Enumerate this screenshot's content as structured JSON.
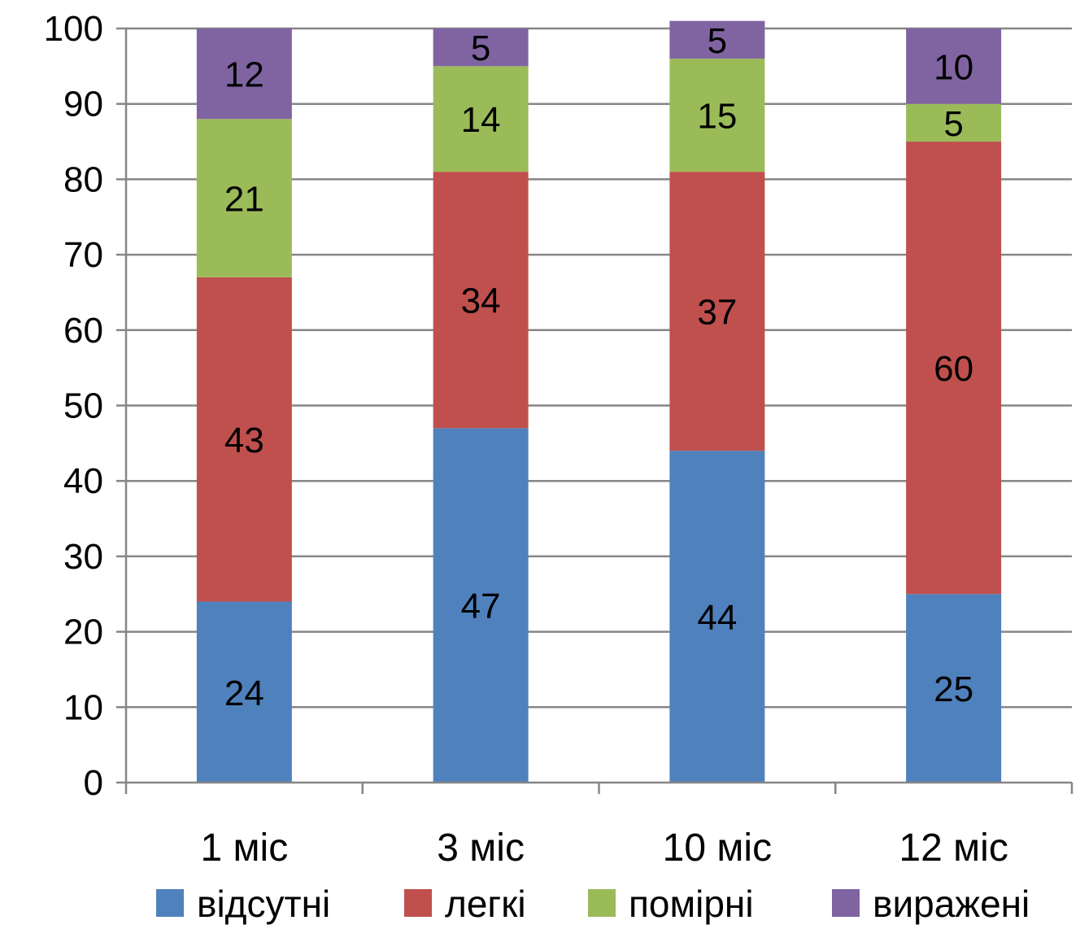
{
  "chart_data": {
    "type": "bar",
    "stacked": true,
    "categories": [
      "1 міс",
      "3 міс",
      "10 міс",
      "12 міс"
    ],
    "series": [
      {
        "name": "відсутні",
        "color": "#4F81BD",
        "values": [
          24,
          47,
          44,
          25
        ]
      },
      {
        "name": "легкі",
        "color": "#C0504D",
        "values": [
          43,
          34,
          37,
          60
        ]
      },
      {
        "name": "помірні",
        "color": "#9BBB59",
        "values": [
          21,
          14,
          15,
          5
        ]
      },
      {
        "name": "виражені",
        "color": "#8064A2",
        "values": [
          12,
          5,
          5,
          10
        ]
      }
    ],
    "ylim": [
      0,
      100
    ],
    "yticks": [
      "0",
      "10",
      "20",
      "30",
      "40",
      "50",
      "60",
      "70",
      "80",
      "90",
      "100"
    ],
    "grid": true,
    "legend": "bottom",
    "title": "",
    "xlabel": "",
    "ylabel": ""
  }
}
